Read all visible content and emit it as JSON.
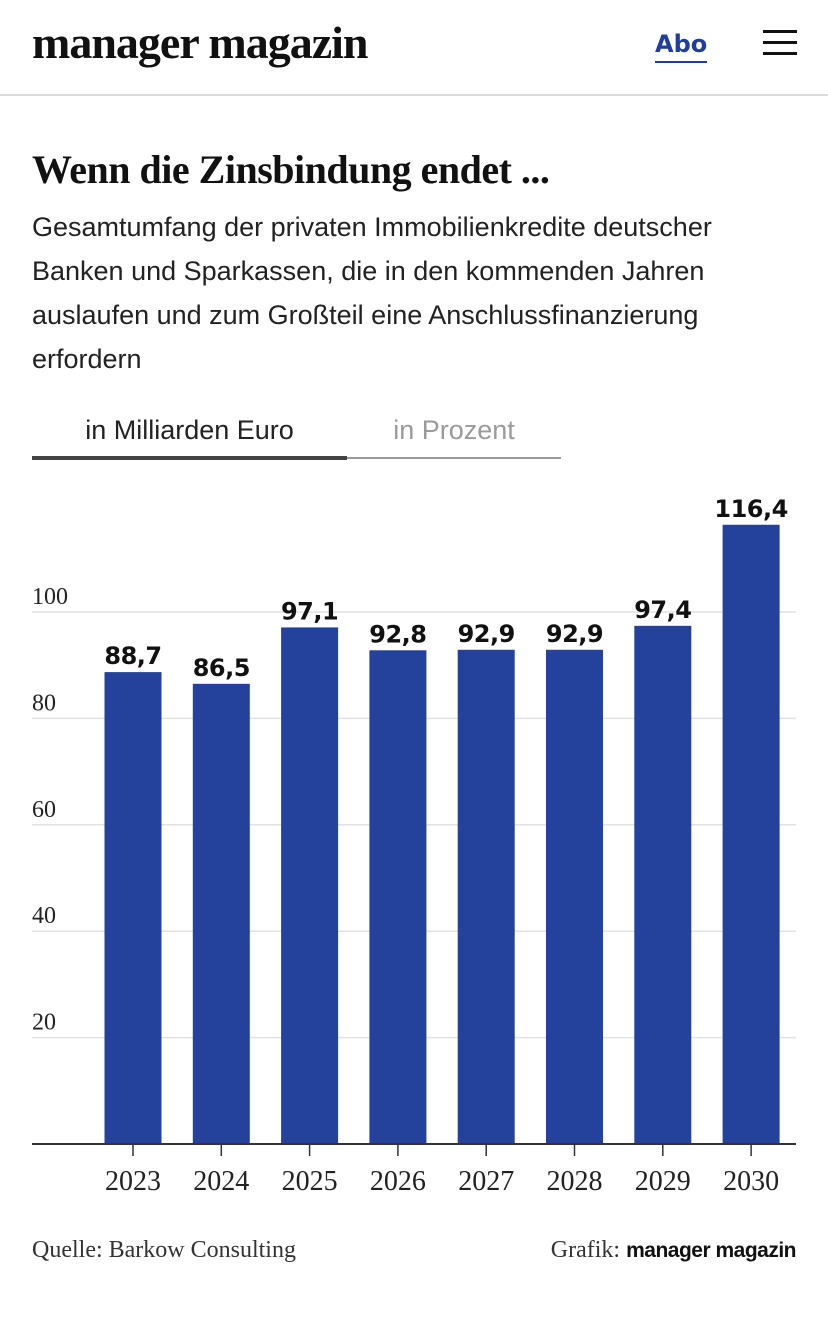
{
  "header": {
    "logo": "manager magazin",
    "abo_label": "Abo",
    "menu_icon": "hamburger-menu-icon"
  },
  "tabs": [
    {
      "label": "in Milliarden Euro",
      "active": true
    },
    {
      "label": "in Prozent",
      "active": false
    }
  ],
  "footer": {
    "source": "Quelle: Barkow Consulting",
    "credit_prefix": "Grafik:",
    "credit_brand": "manager magazin"
  },
  "chart_data": {
    "type": "bar",
    "title": "Wenn die Zinsbindung endet ...",
    "subtitle": "Gesamtumfang der privaten Immobilienkredite deutscher Banken und Sparkassen, die in den kommenden Jahren auslaufen und zum Großteil eine Anschlussfinanzierung erfordern",
    "categories": [
      "2023",
      "2024",
      "2025",
      "2026",
      "2027",
      "2028",
      "2029",
      "2030"
    ],
    "values": [
      88.7,
      86.5,
      97.1,
      92.8,
      92.9,
      92.9,
      97.4,
      116.4
    ],
    "value_labels": [
      "88,7",
      "86,5",
      "97,1",
      "92,8",
      "92,9",
      "92,9",
      "97,4",
      "116,4"
    ],
    "yticks": [
      20,
      40,
      60,
      80,
      100
    ],
    "ylim": [
      0,
      120
    ],
    "grid": true,
    "bar_color": "#24419c"
  }
}
